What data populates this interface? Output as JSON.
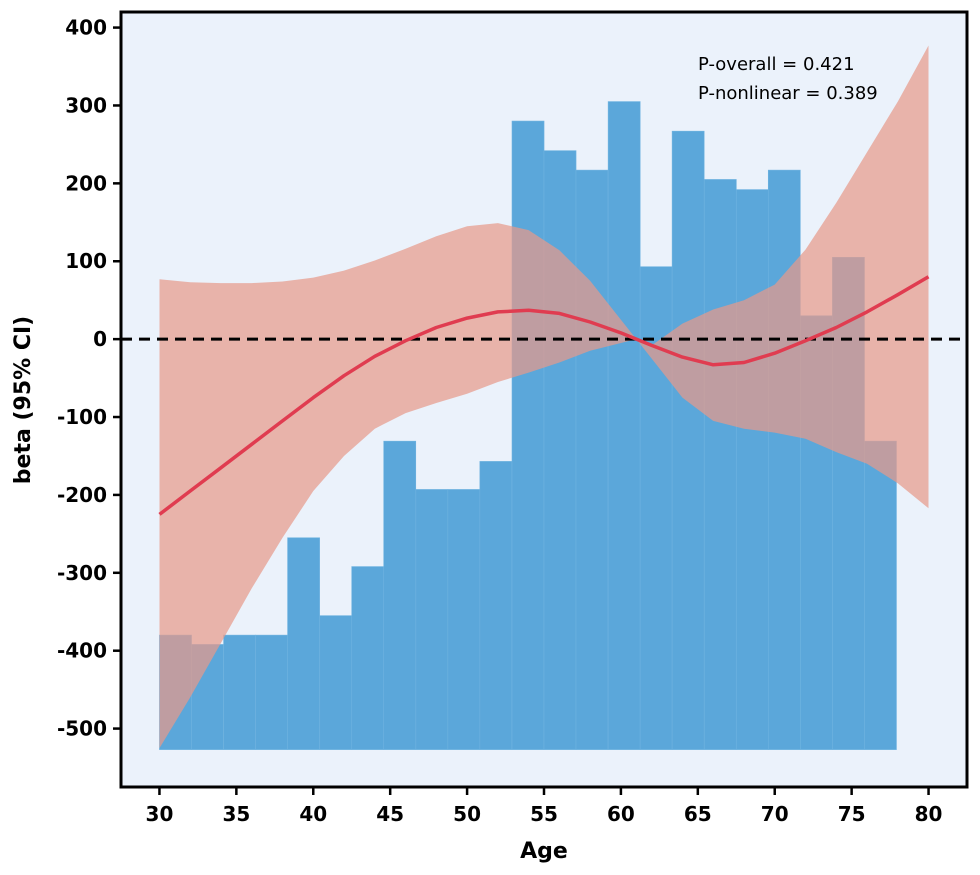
{
  "chart_data": {
    "type": "line",
    "xlabel": "Age",
    "ylabel": "beta (95% CI)",
    "xlim": [
      27.5,
      82.5
    ],
    "ylim": [
      -575,
      420
    ],
    "xticks": [
      30,
      35,
      40,
      45,
      50,
      55,
      60,
      65,
      70,
      75,
      80
    ],
    "yticks": [
      -500,
      -400,
      -300,
      -200,
      -100,
      0,
      100,
      200,
      300,
      400
    ],
    "annotations": [
      "P-overall = 0.421",
      "P-nonlinear = 0.389"
    ],
    "reference_line": {
      "y": 0,
      "style": "dashed"
    },
    "background_color": "#EBF2FB",
    "colors": {
      "curve": "#E03C50",
      "ci_band": "#E69A8A",
      "histogram": "#5BA7DA"
    },
    "series": [
      {
        "type": "line",
        "x": [
          30,
          32,
          34,
          36,
          38,
          40,
          42,
          44,
          46,
          48,
          50,
          52,
          54,
          56,
          58,
          60,
          61,
          62,
          64,
          66,
          68,
          70,
          72,
          74,
          76,
          78,
          80
        ],
        "y": [
          -225,
          -195,
          -165,
          -135,
          -105,
          -75,
          -47,
          -22,
          -2,
          15,
          27,
          35,
          37,
          33,
          22,
          8,
          0,
          -8,
          -23,
          -33,
          -30,
          -18,
          -2,
          15,
          35,
          57,
          80
        ]
      },
      {
        "type": "ci_band",
        "x": [
          30,
          32,
          34,
          36,
          38,
          40,
          42,
          44,
          46,
          48,
          50,
          52,
          54,
          56,
          58,
          60,
          61,
          62,
          64,
          66,
          68,
          70,
          72,
          74,
          76,
          78,
          80
        ],
        "upper": [
          77,
          73,
          72,
          72,
          74,
          79,
          88,
          101,
          116,
          132,
          145,
          149,
          140,
          114,
          75,
          25,
          0,
          -8,
          20,
          38,
          50,
          70,
          115,
          175,
          240,
          305,
          377
        ],
        "lower": [
          -525,
          -460,
          -390,
          -320,
          -255,
          -195,
          -150,
          -115,
          -95,
          -82,
          -70,
          -55,
          -43,
          -30,
          -15,
          -5,
          0,
          -25,
          -75,
          -105,
          -115,
          -120,
          -128,
          -145,
          -160,
          -185,
          -217
        ]
      },
      {
        "type": "histogram",
        "baseline": -527,
        "bin_starts": [
          30,
          32.08,
          34.17,
          36.25,
          38.33,
          40.42,
          42.5,
          44.58,
          46.67,
          48.75,
          50.83,
          52.92,
          55,
          57.08,
          59.17,
          61.25,
          63.33,
          65.42,
          67.5,
          69.58,
          71.67,
          73.75,
          75.83
        ],
        "bin_width": 2.083,
        "tops": [
          -380,
          -392,
          -380,
          -380,
          -255,
          -355,
          -292,
          -131,
          -193,
          -193,
          -157,
          280,
          242,
          217,
          305,
          93,
          267,
          205,
          192,
          217,
          30,
          105,
          -131
        ]
      }
    ]
  }
}
